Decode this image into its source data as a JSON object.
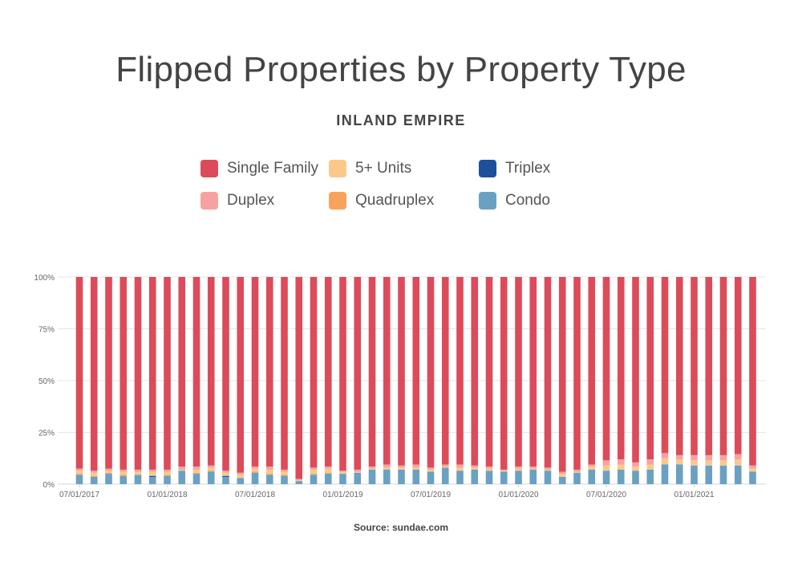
{
  "chart_data": {
    "type": "bar",
    "stacked": true,
    "title": "Flipped Properties by Property Type",
    "subtitle": "INLAND EMPIRE",
    "source": "Source: sundae.com",
    "ylim": [
      0,
      100
    ],
    "yticks": [
      0,
      25,
      50,
      75,
      100
    ],
    "ytick_labels": [
      "0%",
      "25%",
      "50%",
      "75%",
      "100%"
    ],
    "xtick_labels": [
      {
        "index": 0,
        "label": "07/01/2017"
      },
      {
        "index": 6,
        "label": "01/01/2018"
      },
      {
        "index": 12,
        "label": "07/01/2018"
      },
      {
        "index": 18,
        "label": "01/01/2019"
      },
      {
        "index": 24,
        "label": "07/01/2019"
      },
      {
        "index": 30,
        "label": "01/01/2020"
      },
      {
        "index": 36,
        "label": "07/01/2020"
      },
      {
        "index": 42,
        "label": "01/01/2021"
      }
    ],
    "grid": true,
    "legend_placement": "top",
    "categories": [
      "07/01/2017",
      "08/01/2017",
      "09/01/2017",
      "10/01/2017",
      "11/01/2017",
      "12/01/2017",
      "01/01/2018",
      "02/01/2018",
      "03/01/2018",
      "04/01/2018",
      "05/01/2018",
      "06/01/2018",
      "07/01/2018",
      "08/01/2018",
      "09/01/2018",
      "10/01/2018",
      "11/01/2018",
      "12/01/2018",
      "01/01/2019",
      "02/01/2019",
      "03/01/2019",
      "04/01/2019",
      "05/01/2019",
      "06/01/2019",
      "07/01/2019",
      "08/01/2019",
      "09/01/2019",
      "10/01/2019",
      "11/01/2019",
      "12/01/2019",
      "01/01/2020",
      "02/01/2020",
      "03/01/2020",
      "04/01/2020",
      "05/01/2020",
      "06/01/2020",
      "07/01/2020",
      "08/01/2020",
      "09/01/2020",
      "10/01/2020",
      "11/01/2020",
      "12/01/2020",
      "01/01/2021",
      "02/01/2021",
      "03/01/2021",
      "04/01/2021",
      "05/01/2021"
    ],
    "series": [
      {
        "name": "Condo",
        "color": "#6aa1c2",
        "values": [
          4.5,
          3.5,
          5,
          4,
          4.5,
          3.5,
          4,
          6.5,
          5,
          6,
          3.5,
          3,
          5.5,
          4.5,
          4,
          1.5,
          4.5,
          5,
          5,
          5.5,
          7,
          7,
          7,
          7,
          6,
          8,
          6.5,
          7,
          6.5,
          6,
          6.5,
          7,
          6.5,
          3.5,
          5.5,
          7,
          6.5,
          7,
          6.5,
          7,
          9.5,
          9.5,
          9,
          9,
          9,
          9,
          6
        ]
      },
      {
        "name": "Triplex",
        "color": "#1e4f9c",
        "values": [
          0,
          0,
          0,
          0,
          0,
          0.5,
          0,
          0,
          0,
          0,
          0.5,
          0,
          0,
          0,
          0,
          0,
          0,
          0,
          0,
          0,
          0,
          0,
          0,
          0,
          0,
          0,
          0,
          0,
          0,
          0,
          0,
          0,
          0,
          0,
          0,
          0,
          0,
          0,
          0,
          0,
          0,
          0,
          0,
          0,
          0,
          0,
          0
        ]
      },
      {
        "name": "Quadruplex",
        "color": "#f7a35c",
        "values": [
          0.5,
          0.5,
          0.5,
          0.5,
          0,
          0,
          0.5,
          0,
          0.5,
          0.5,
          0,
          0,
          0.5,
          0.5,
          0.5,
          0,
          0.5,
          0.5,
          0,
          0,
          0,
          0,
          0,
          0,
          0,
          0,
          0,
          0,
          0,
          0,
          0,
          0,
          0,
          0,
          0,
          0,
          0,
          0,
          0,
          0,
          0,
          0,
          0,
          0,
          0,
          0,
          0
        ]
      },
      {
        "name": "5+ Units",
        "color": "#fac98a",
        "values": [
          1.5,
          1.5,
          1,
          1.5,
          1.5,
          2,
          1.5,
          0.5,
          1.5,
          1.5,
          1.5,
          1.5,
          1.5,
          2,
          1.5,
          0.5,
          2,
          2,
          1,
          0.5,
          0.5,
          1,
          1,
          1,
          1,
          0.5,
          1.5,
          1,
          1,
          0.5,
          1,
          0.5,
          0.5,
          1.5,
          0.5,
          1.5,
          2.5,
          2.5,
          2,
          2.5,
          3,
          2.5,
          2.5,
          2.5,
          2.5,
          3,
          1.5
        ]
      },
      {
        "name": "Duplex",
        "color": "#f7a2a2",
        "values": [
          1,
          1,
          1,
          1,
          1,
          1,
          1,
          1.5,
          1.5,
          1,
          1,
          1,
          1,
          1.5,
          1,
          0.5,
          1,
          1,
          0.5,
          1,
          1,
          1.5,
          1,
          1.5,
          1,
          1,
          1.5,
          1,
          1,
          0.5,
          1,
          1,
          1,
          1,
          1,
          1,
          2.5,
          2.5,
          2,
          2.5,
          2.5,
          2,
          2.5,
          2.5,
          2.5,
          2.5,
          1.5
        ]
      },
      {
        "name": "Single Family",
        "color": "#dc4b5a",
        "values": [
          92.5,
          93.5,
          92.5,
          93,
          93,
          93,
          93,
          91.5,
          91.5,
          91,
          93.5,
          94.5,
          91.5,
          91.5,
          93,
          97.5,
          92,
          91.5,
          93.5,
          93,
          91.5,
          90.5,
          91,
          90.5,
          92,
          90.5,
          90.5,
          91,
          91.5,
          93,
          91.5,
          91.5,
          92,
          94,
          93,
          90.5,
          88.5,
          88,
          89.5,
          88,
          85,
          86,
          86,
          86,
          86,
          85.5,
          91
        ]
      }
    ],
    "legend_order": [
      "Single Family",
      "5+ Units",
      "Triplex",
      "Duplex",
      "Quadruplex",
      "Condo"
    ]
  }
}
